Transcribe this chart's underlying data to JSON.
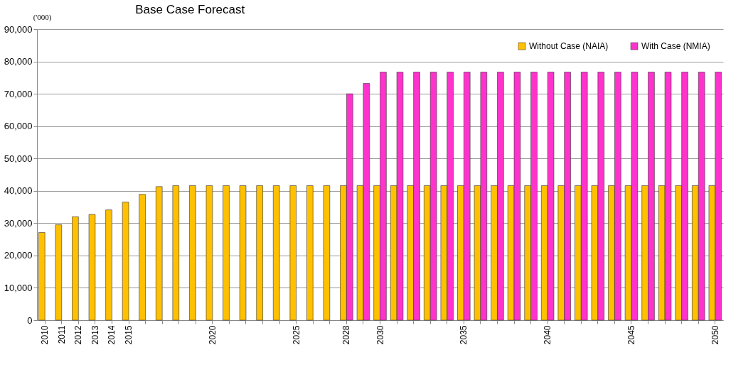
{
  "chart_data": {
    "type": "bar",
    "title": "Base Case Forecast",
    "ylabel": "('000)",
    "categories": [
      "2010",
      "2011",
      "2012",
      "2013",
      "2014",
      "2015",
      null,
      null,
      null,
      null,
      "2020",
      null,
      null,
      null,
      null,
      "2025",
      null,
      null,
      "2028",
      null,
      "2030",
      null,
      null,
      null,
      null,
      "2035",
      null,
      null,
      null,
      null,
      "2040",
      null,
      null,
      null,
      null,
      "2045",
      null,
      null,
      null,
      null,
      "2050"
    ],
    "series": [
      {
        "name": "Without Case (NAIA)",
        "color": "#ffc000",
        "values": [
          27100,
          29500,
          32000,
          32700,
          34100,
          36500,
          38900,
          41300,
          41600,
          41600,
          41600,
          41600,
          41600,
          41600,
          41600,
          41600,
          41600,
          41600,
          41600,
          41600,
          41600,
          41600,
          41600,
          41600,
          41600,
          41600,
          41600,
          41600,
          41600,
          41600,
          41600,
          41600,
          41600,
          41600,
          41600,
          41600,
          41600,
          41600,
          41600,
          41600,
          41600
        ]
      },
      {
        "name": "With Case (NMIA)",
        "color": "#ff33cc",
        "values": [
          null,
          null,
          null,
          null,
          null,
          null,
          null,
          null,
          null,
          null,
          null,
          null,
          null,
          null,
          null,
          null,
          null,
          null,
          70000,
          73200,
          76700,
          76700,
          76700,
          76700,
          76700,
          76700,
          76700,
          76700,
          76700,
          76700,
          76700,
          76700,
          76700,
          76700,
          76700,
          76700,
          76700,
          76700,
          76700,
          76700,
          76700
        ]
      }
    ],
    "ylim": [
      0,
      90000
    ],
    "yticks": [
      0,
      {
        "value": 10000,
        "label": "10,000"
      },
      {
        "value": 20000,
        "label": "20,000"
      },
      {
        "value": 30000,
        "label": "30,000"
      },
      {
        "value": 40000,
        "label": "40,000"
      },
      {
        "value": 50000,
        "label": "50,000"
      },
      {
        "value": 60000,
        "label": "60,000"
      },
      {
        "value": 70000,
        "label": "70,000"
      },
      {
        "value": 80000,
        "label": "80,000"
      },
      {
        "value": 90000,
        "label": "90,000"
      }
    ],
    "grid": "y",
    "legend": "top right"
  }
}
